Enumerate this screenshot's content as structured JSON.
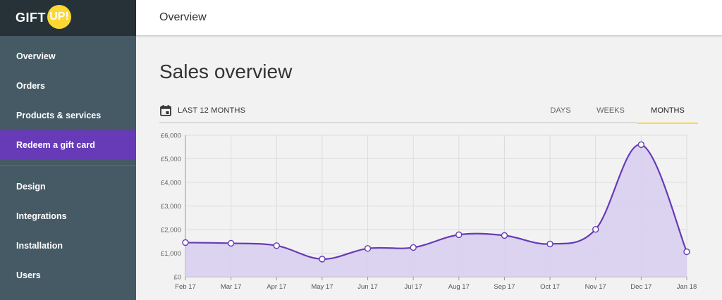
{
  "brand": {
    "text": "GIFT",
    "badge": "UP!"
  },
  "sidebar": {
    "items": [
      {
        "label": "Overview"
      },
      {
        "label": "Orders"
      },
      {
        "label": "Products & services"
      },
      {
        "label": "Redeem a gift card"
      },
      {
        "label": "Design"
      },
      {
        "label": "Integrations"
      },
      {
        "label": "Installation"
      },
      {
        "label": "Users"
      }
    ],
    "active_index": 3
  },
  "header": {
    "title": "Overview"
  },
  "main": {
    "title": "Sales overview",
    "range_label": "LAST 12 MONTHS",
    "tabs": [
      {
        "label": "DAYS"
      },
      {
        "label": "WEEKS"
      },
      {
        "label": "MONTHS"
      }
    ],
    "active_tab": 2
  },
  "colors": {
    "sidebar_bg": "#455a64",
    "brand_bg": "#263238",
    "active_item": "#673ab7",
    "accent_yellow": "#fdd835",
    "line": "#673ab7",
    "area_fill": "#d8cfee"
  },
  "chart_data": {
    "type": "area",
    "categories": [
      "Feb 17",
      "Mar 17",
      "Apr 17",
      "May 17",
      "Jun 17",
      "Jul 17",
      "Aug 17",
      "Sep 17",
      "Oct 17",
      "Nov 17",
      "Dec 17",
      "Jan 18"
    ],
    "values": [
      1450,
      1420,
      1320,
      750,
      1200,
      1240,
      1780,
      1750,
      1390,
      2010,
      5600,
      1060
    ],
    "y_ticks": [
      "£0",
      "£1,000",
      "£2,000",
      "£3,000",
      "£4,000",
      "£5,000",
      "£6,000"
    ],
    "ylim": [
      0,
      6000
    ],
    "grid": true
  }
}
